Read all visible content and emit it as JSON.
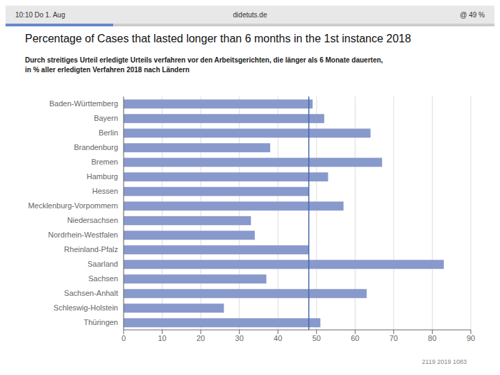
{
  "chart_data": {
    "type": "bar",
    "orientation": "horizontal",
    "title": "Percentage of Cases that lasted longer than 6 months in the 1st instance 2018",
    "subtitle": [
      "Durch streitiges Urteil erledigte Urteils verfahren vor den Arbeitsgerichten, die länger als 6 Monate dauerten,",
      "in % aller erledigten Verfahren 2018 nach Ländern"
    ],
    "annotations": [
      "10:10  Do 1. Aug",
      "didetuts.de",
      "@ 49 %",
      "2119 2019 1083"
    ],
    "categories": [
      "Baden-Württemberg",
      "Bayern",
      "Berlin",
      "Brandenburg",
      "Bremen",
      "Hamburg",
      "Hessen",
      "Mecklenburg-Vorpommern",
      "Niedersachsen",
      "Nordrhein-Westfalen",
      "Rheinland-Pfalz",
      "Saarland",
      "Sachsen",
      "Sachsen-Anhalt",
      "Schleswig-Holstein",
      "Thüringen"
    ],
    "values": [
      49,
      52,
      64,
      38,
      67,
      53,
      48,
      57,
      33,
      34,
      48,
      83,
      37,
      63,
      26,
      51
    ],
    "color": "#8899cc",
    "reference_line": {
      "value": 48,
      "color": "#4466aa"
    },
    "xlim": [
      0,
      90
    ],
    "xticks": [
      0,
      10,
      20,
      30,
      40,
      50,
      60,
      70,
      80,
      90
    ],
    "grid": true
  }
}
